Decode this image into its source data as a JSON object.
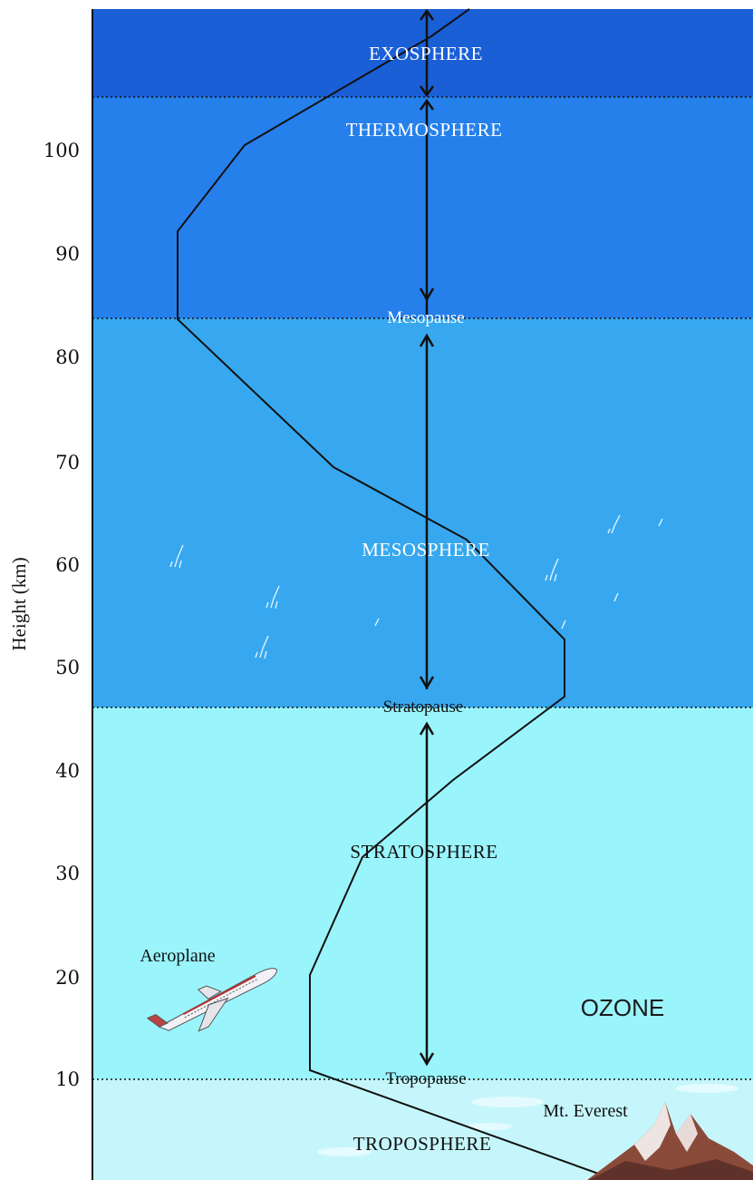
{
  "axis": {
    "ylabel": "Height (km)",
    "ticks": [
      "100",
      "90",
      "80",
      "70",
      "60",
      "50",
      "40",
      "30",
      "20",
      "10"
    ]
  },
  "layers": {
    "exosphere": "EXOSPHERE",
    "thermosphere": "THERMOSPHERE",
    "mesosphere": "MESOSPHERE",
    "stratosphere": "STRATOSPHERE",
    "troposphere": "TROPOSPHERE"
  },
  "boundaries": {
    "mesopause": "Mesopause",
    "stratopause": "Stratopause",
    "tropopause": "Tropopause"
  },
  "annotations": {
    "aeroplane": "Aeroplane",
    "everest": "Mt. Everest",
    "ozone": "OZONE"
  },
  "colors": {
    "exosphere": "#1a5fd6",
    "thermosphere": "#2680ec",
    "mesosphere": "#37a8f0",
    "stratosphere": "#9af4fb",
    "troposphere": "#c5f6fb"
  }
}
